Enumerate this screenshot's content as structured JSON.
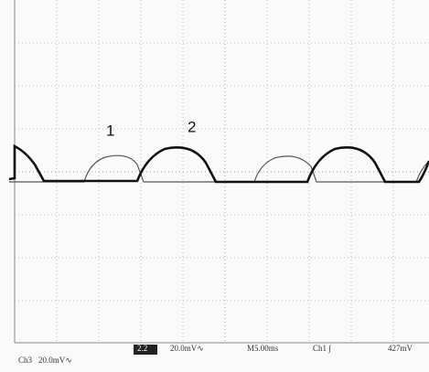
{
  "labels": {
    "trace1": "1",
    "trace2": "2"
  },
  "footer": {
    "ch3": "Ch3",
    "ch3_scale": "20.0mV∿",
    "ch2": "2.2",
    "ch2_scale": "20.0mV∿",
    "timebase": "M5.00ms",
    "trigger": "Ch1 ∫",
    "trigger_level": "427mV"
  }
}
